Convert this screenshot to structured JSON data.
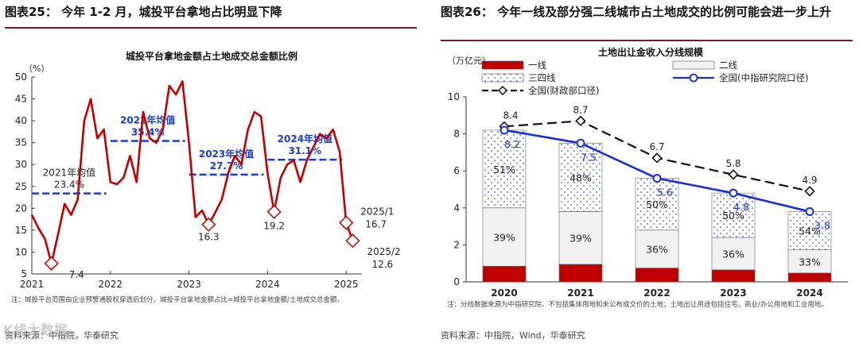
{
  "left": {
    "figure_title": "图表25： 今年 1-2 月，城投平台拿地占比明显下降",
    "note": "注：城投平台范围由企业预警通股权穿透后划分，城投平台拿地金额占比=城投平台拿地金额/土地成交总金额。",
    "source": "资料来源：中指院，华泰研究",
    "watermark": "K线大数据"
  },
  "right": {
    "figure_title": "图表26： 今年一线及部分强二线城市占土地成交的比例可能会进一步上升",
    "note": "注：分线数据来源为中指研究院、不包括集体用地和未公布成交价的土地；土地出让用途包括住宅、商业/办公用地和工业用地。",
    "source": "资料来源：中指院，Wind，华泰研究"
  },
  "chart_data": [
    {
      "type": "line",
      "title": "城投平台拿地金额占土地成交总金额比例",
      "ylabel": "（%）",
      "ylim": [
        5,
        50
      ],
      "yticks": [
        "5",
        "10",
        "15",
        "20",
        "25",
        "30",
        "35",
        "40",
        "45",
        "50"
      ],
      "xticks": [
        "2021",
        "2022",
        "2023",
        "2024",
        "2025"
      ],
      "series": [
        {
          "name": "城投平台拿地金额占比",
          "color": "#c00000",
          "x": [
            2021.0,
            2021.083,
            2021.167,
            2021.25,
            2021.333,
            2021.417,
            2021.5,
            2021.583,
            2021.667,
            2021.75,
            2021.833,
            2021.917,
            2022.0,
            2022.083,
            2022.167,
            2022.25,
            2022.333,
            2022.417,
            2022.5,
            2022.583,
            2022.667,
            2022.75,
            2022.833,
            2022.917,
            2023.0,
            2023.083,
            2023.167,
            2023.25,
            2023.333,
            2023.417,
            2023.5,
            2023.583,
            2023.667,
            2023.75,
            2023.833,
            2023.917,
            2024.0,
            2024.083,
            2024.167,
            2024.25,
            2024.333,
            2024.417,
            2024.5,
            2024.583,
            2024.667,
            2024.75,
            2024.833,
            2024.917,
            2025.0,
            2025.083
          ],
          "values": [
            18.5,
            15.5,
            13,
            7.4,
            14,
            21,
            18.5,
            22,
            40,
            45,
            36,
            38,
            26,
            25.5,
            27,
            32,
            26,
            42,
            36,
            35,
            38,
            48,
            46,
            49,
            35,
            18,
            19.5,
            16.3,
            19,
            22,
            28,
            32,
            30,
            38,
            42,
            41,
            28,
            19.2,
            27,
            30,
            31,
            26,
            31,
            34,
            37,
            36,
            38,
            33,
            16.7,
            12.6
          ]
        }
      ],
      "averages": [
        {
          "label_year": "2021年均值",
          "label_value": "23.4%",
          "value": 23.4,
          "x_from": 2021.0,
          "x_to": 2021.95,
          "color": "#1a3ccc"
        },
        {
          "label_year": "2022年均值",
          "label_value": "35.4%",
          "value": 35.4,
          "x_from": 2022.0,
          "x_to": 2022.95,
          "color": "#1a3ccc"
        },
        {
          "label_year": "2023年均值",
          "label_value": "27.7%",
          "value": 27.7,
          "x_from": 2023.0,
          "x_to": 2023.95,
          "color": "#1a3ccc"
        },
        {
          "label_year": "2024年均值",
          "label_value": "31.1%",
          "value": 31.1,
          "x_from": 2024.0,
          "x_to": 2024.95,
          "color": "#1a3ccc"
        }
      ],
      "markers": [
        {
          "x": 2021.25,
          "value": 7.4,
          "label": "7.4"
        },
        {
          "x": 2023.25,
          "value": 16.3,
          "label": "16.3"
        },
        {
          "x": 2024.083,
          "value": 19.2,
          "label": "19.2"
        },
        {
          "x": 2025.0,
          "value": 16.7,
          "label_date": "2025/1",
          "label": "16.7"
        },
        {
          "x": 2025.083,
          "value": 12.6,
          "label_date": "2025/2",
          "label": "12.6"
        }
      ]
    },
    {
      "type": "bar",
      "stacked": true,
      "title": "土地出让金收入分线规模",
      "ylabel": "（万亿元）",
      "ylim": [
        0,
        10
      ],
      "yticks": [
        "0",
        "2",
        "4",
        "6",
        "8",
        "10"
      ],
      "categories": [
        "2020",
        "2021",
        "2022",
        "2023",
        "2024"
      ],
      "series": [
        {
          "name": "一线",
          "color": "#c00000",
          "values": [
            0.85,
            0.95,
            0.75,
            0.65,
            0.48
          ]
        },
        {
          "name": "二线",
          "color": "#f2f2f2",
          "values": [
            3.15,
            2.85,
            2.05,
            1.75,
            1.25
          ],
          "labels": [
            "39%",
            "39%",
            "36%",
            "36%",
            "33%"
          ]
        },
        {
          "name": "三四线",
          "color": "#ffffff",
          "values": [
            4.2,
            3.7,
            2.8,
            2.4,
            2.07
          ],
          "labels": [
            "51%",
            "48%",
            "50%",
            "50%",
            "54%"
          ]
        }
      ],
      "lines": [
        {
          "name": "全国(财政部口径)",
          "color": "#111111",
          "values": [
            8.4,
            8.7,
            6.7,
            5.8,
            4.9
          ],
          "labels": [
            "8.4",
            "8.7",
            "6.7",
            "5.8",
            "4.9"
          ]
        },
        {
          "name": "全国(中指研究院口径)",
          "color": "#1a2fd6",
          "values": [
            8.2,
            7.5,
            5.6,
            4.8,
            3.8
          ],
          "labels": [
            "8.2",
            "7.5",
            "5.6",
            "4.8",
            "3.8"
          ]
        }
      ]
    }
  ]
}
